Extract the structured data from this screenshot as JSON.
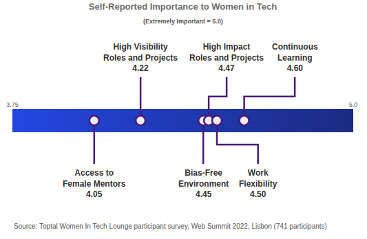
{
  "chart_data": {
    "type": "dot",
    "title": "Self-Reported Importance to Women in Tech",
    "subtitle": "(Extremely Important = 5.0)",
    "source": "Source: Toptal Women In Tech Lounge participant survey, Web Summit 2022, Lisbon (741 participants)",
    "categories": [
      "Access to\nFemale Mentors",
      "High Visibility\nRoles and Projects",
      "Bias-Free\nEnvironment",
      "High Impact\nRoles and Projects",
      "Work\nFlexibility",
      "Continuous\nLearning"
    ],
    "values": [
      4.05,
      4.22,
      4.45,
      4.47,
      4.5,
      4.6
    ],
    "value_labels": [
      "4.05",
      "4.22",
      "4.45",
      "4.47",
      "4.50",
      "4.60"
    ],
    "xlim": [
      3.75,
      5.0
    ],
    "xticks": [
      3.75,
      {
        "value": 5,
        "label": "5.0"
      }
    ],
    "data_labels": true,
    "tick_labels": "x",
    "grid": false,
    "color": "#4a1a7a"
  }
}
